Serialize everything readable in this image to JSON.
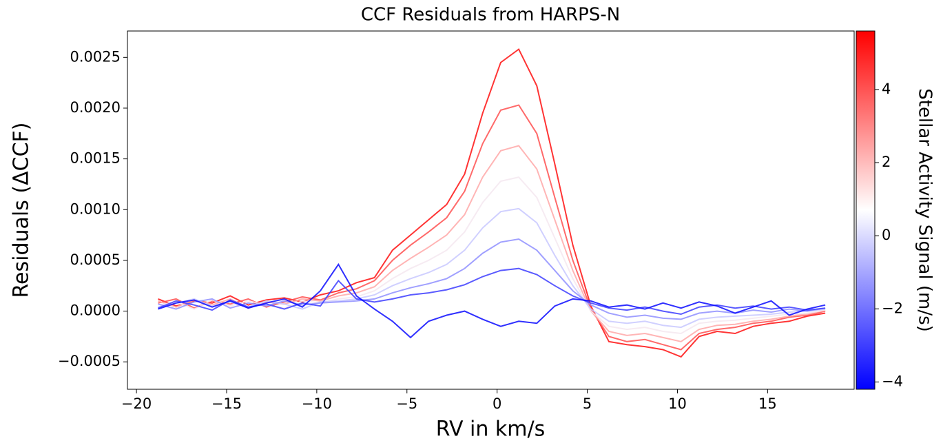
{
  "chart_data": {
    "type": "line",
    "title": "CCF Residuals from HARPS-N",
    "xlabel": "RV in km/s",
    "ylabel": "Residuals (ΔCCF)",
    "x": [
      -18.8,
      -17.8,
      -16.8,
      -15.8,
      -14.8,
      -13.8,
      -12.8,
      -11.8,
      -10.8,
      -9.8,
      -8.8,
      -7.8,
      -6.8,
      -5.8,
      -4.8,
      -3.8,
      -2.8,
      -1.8,
      -0.8,
      0.2,
      1.2,
      2.2,
      3.2,
      4.2,
      5.2,
      6.2,
      7.2,
      8.2,
      9.2,
      10.2,
      11.2,
      12.2,
      13.2,
      14.2,
      15.2,
      16.2,
      17.2,
      18.2
    ],
    "series": [
      {
        "color": "#ff1010",
        "values": [
          0.00012,
          5e-05,
          0.0001,
          8e-05,
          0.00015,
          6e-05,
          0.00011,
          0.00013,
          9e-05,
          0.00016,
          0.0002,
          0.00028,
          0.00033,
          0.0006,
          0.00075,
          0.0009,
          0.00105,
          0.00135,
          0.00195,
          0.00245,
          0.00258,
          0.00222,
          0.00145,
          0.00065,
          5e-05,
          -0.0003,
          -0.00033,
          -0.00035,
          -0.00038,
          -0.00045,
          -0.00025,
          -0.0002,
          -0.00022,
          -0.00015,
          -0.00012,
          -0.0001,
          -5e-05,
          -2e-05
        ]
      },
      {
        "color": "#ff5050",
        "values": [
          8e-05,
          0.00012,
          3e-05,
          0.0001,
          7e-05,
          0.00012,
          4e-05,
          9e-05,
          0.00014,
          0.00011,
          0.00018,
          0.00022,
          0.0003,
          0.0005,
          0.00065,
          0.00078,
          0.00092,
          0.00118,
          0.00165,
          0.00198,
          0.00203,
          0.00175,
          0.00112,
          0.0005,
          2e-05,
          -0.00025,
          -0.0003,
          -0.00028,
          -0.00033,
          -0.00038,
          -0.00022,
          -0.00018,
          -0.00016,
          -0.00012,
          -0.0001,
          -6e-05,
          -4e-05,
          0.0
        ]
      },
      {
        "color": "#ffa8a8",
        "values": [
          0.0001,
          4e-05,
          0.00011,
          6e-05,
          0.00012,
          3e-05,
          9e-05,
          7e-05,
          0.00012,
          0.0001,
          0.00015,
          0.00018,
          0.00024,
          0.0004,
          0.00052,
          0.00063,
          0.00075,
          0.00095,
          0.00132,
          0.00158,
          0.00163,
          0.0014,
          0.0009,
          0.0004,
          0.0,
          -0.0002,
          -0.00024,
          -0.00022,
          -0.00026,
          -0.0003,
          -0.00018,
          -0.00014,
          -0.00013,
          -0.0001,
          -8e-05,
          -5e-05,
          -3e-05,
          1e-05
        ]
      },
      {
        "color": "#f4e8f0",
        "values": [
          6e-05,
          9e-05,
          2e-05,
          0.00011,
          5e-05,
          0.0001,
          6e-05,
          3e-05,
          0.0001,
          8e-05,
          0.00012,
          0.00014,
          0.0002,
          0.00032,
          0.00042,
          0.0005,
          0.0006,
          0.00078,
          0.00107,
          0.00128,
          0.00132,
          0.00112,
          0.00072,
          0.00032,
          0.0,
          -0.00015,
          -0.00018,
          -0.00016,
          -0.0002,
          -0.00022,
          -0.00012,
          -0.0001,
          -9e-05,
          -7e-05,
          -5e-05,
          -3e-05,
          -2e-05,
          1e-05
        ]
      },
      {
        "color": "#c8c8ff",
        "values": [
          4e-05,
          8e-05,
          0.00012,
          5e-05,
          9e-05,
          4e-05,
          0.0001,
          7e-05,
          2e-05,
          9e-05,
          0.0001,
          0.00012,
          0.00016,
          0.00025,
          0.00032,
          0.00038,
          0.00046,
          0.0006,
          0.00082,
          0.00098,
          0.00101,
          0.00087,
          0.00055,
          0.00025,
          2e-05,
          -0.0001,
          -0.00012,
          -0.0001,
          -0.00014,
          -0.00016,
          -8e-05,
          -6e-05,
          -5e-05,
          -4e-05,
          -3e-05,
          -1e-05,
          0.0,
          2e-05
        ]
      },
      {
        "color": "#8f8fff",
        "values": [
          7e-05,
          2e-05,
          9e-05,
          0.00012,
          3e-05,
          8e-05,
          5e-05,
          0.0001,
          6e-05,
          8e-05,
          9e-05,
          0.0001,
          0.00012,
          0.00018,
          0.00023,
          0.00027,
          0.00032,
          0.00042,
          0.00057,
          0.00068,
          0.00071,
          0.0006,
          0.0004,
          0.0002,
          6e-05,
          -2e-05,
          -6e-05,
          -4e-05,
          -7e-05,
          -8e-05,
          -2e-05,
          0.0,
          -2e-05,
          1e-05,
          -1e-05,
          2e-05,
          0.0,
          3e-05
        ]
      },
      {
        "color": "#3d3dff",
        "values": [
          3e-05,
          0.0001,
          6e-05,
          1e-05,
          0.00011,
          4e-05,
          7e-05,
          2e-05,
          8e-05,
          5e-05,
          0.0003,
          0.00012,
          9e-05,
          0.00012,
          0.00016,
          0.00018,
          0.00021,
          0.00026,
          0.00034,
          0.0004,
          0.00042,
          0.00036,
          0.00025,
          0.00015,
          8e-05,
          3e-05,
          1e-05,
          4e-05,
          0.0,
          -3e-05,
          4e-05,
          6e-05,
          3e-05,
          5e-05,
          2e-05,
          4e-05,
          1e-05,
          3e-05
        ]
      },
      {
        "color": "#0a0aff",
        "values": [
          2e-05,
          8e-05,
          0.00011,
          4e-05,
          0.0001,
          3e-05,
          8e-05,
          0.00012,
          4e-05,
          0.0002,
          0.00046,
          0.00015,
          2e-05,
          -0.0001,
          -0.00026,
          -0.0001,
          -4e-05,
          0.0,
          -8e-05,
          -0.00015,
          -0.0001,
          -0.00012,
          5e-05,
          0.00012,
          0.0001,
          4e-05,
          6e-05,
          2e-05,
          8e-05,
          3e-05,
          9e-05,
          5e-05,
          -2e-05,
          4e-05,
          0.0001,
          -4e-05,
          2e-05,
          6e-05
        ]
      }
    ],
    "xlim": [
      -20.5,
      19.8
    ],
    "xticks": [
      {
        "value": -20,
        "label": "−20"
      },
      {
        "value": -15,
        "label": "−15"
      },
      {
        "value": -10,
        "label": "−10"
      },
      {
        "value": -5,
        "label": "−5"
      },
      0,
      5,
      10,
      15
    ],
    "ylim": [
      -0.00077,
      0.00276
    ],
    "yticks": [
      {
        "value": -0.0005,
        "label": "−0.0005"
      },
      {
        "value": 0,
        "label": "0.0000"
      },
      0.0005,
      {
        "value": 0.001,
        "label": "0.0010"
      },
      0.0015,
      {
        "value": 0.002,
        "label": "0.0020"
      },
      0.0025
    ],
    "colorbar": {
      "label": "Stellar Activity Signal (m/s)",
      "lim": [
        -4.2,
        5.6
      ],
      "ticks": [
        {
          "value": -4,
          "label": "−4"
        },
        {
          "value": -2,
          "label": "−2"
        },
        0,
        2,
        4
      ],
      "colors": [
        "#0000ff",
        "#ffffff",
        "#ff0000"
      ]
    }
  }
}
